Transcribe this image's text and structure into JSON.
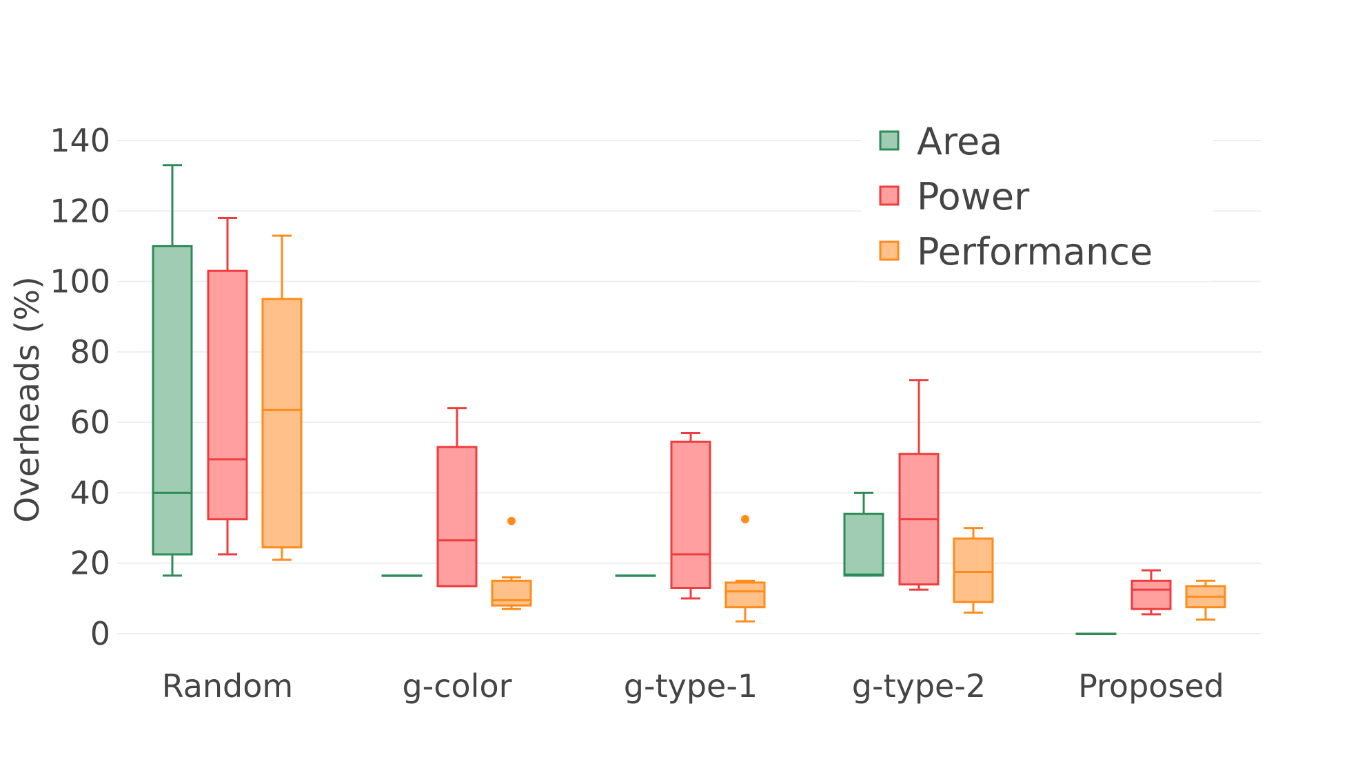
{
  "chart_data": {
    "type": "box",
    "title": "",
    "xlabel": "",
    "ylabel": "Overheads (%)",
    "ylim": [
      -5,
      145
    ],
    "yticks": [
      0,
      20,
      40,
      60,
      80,
      100,
      120,
      140
    ],
    "ytick_labels": [
      "0",
      "20",
      "40",
      "60",
      "80",
      "100",
      "120",
      "140"
    ],
    "grid": true,
    "legend_position": "top-right",
    "categories": [
      "Random",
      "g-color",
      "g-type-1",
      "g-type-2",
      "Proposed"
    ],
    "series": [
      {
        "name": "Area",
        "color": "#2e8b57",
        "fill": "#9fccb3",
        "boxes": [
          {
            "min": 16.5,
            "q1": 22.5,
            "median": 40,
            "q3": 110,
            "max": 133,
            "outliers": []
          },
          {
            "min": 16.5,
            "q1": 16.5,
            "median": 16.5,
            "q3": 16.5,
            "max": 16.5,
            "outliers": []
          },
          {
            "min": 16.5,
            "q1": 16.5,
            "median": 16.5,
            "q3": 16.5,
            "max": 16.5,
            "outliers": []
          },
          {
            "min": 16.5,
            "q1": 16.5,
            "median": 16.8,
            "q3": 34,
            "max": 40,
            "outliers": []
          },
          {
            "min": 0,
            "q1": 0,
            "median": 0,
            "q3": 0,
            "max": 0,
            "outliers": []
          }
        ]
      },
      {
        "name": "Power",
        "color": "#f03c3c",
        "fill": "#ff9f9f",
        "boxes": [
          {
            "min": 22.5,
            "q1": 32.5,
            "median": 49.5,
            "q3": 103,
            "max": 118,
            "outliers": []
          },
          {
            "min": 13.5,
            "q1": 13.5,
            "median": 26.5,
            "q3": 53,
            "max": 64,
            "outliers": []
          },
          {
            "min": 10,
            "q1": 13,
            "median": 22.5,
            "q3": 54.5,
            "max": 57,
            "outliers": []
          },
          {
            "min": 12.5,
            "q1": 14,
            "median": 32.5,
            "q3": 51,
            "max": 72,
            "outliers": []
          },
          {
            "min": 5.5,
            "q1": 7,
            "median": 12.5,
            "q3": 15,
            "max": 18,
            "outliers": []
          }
        ]
      },
      {
        "name": "Performance",
        "color": "#ff8c1a",
        "fill": "#ffc08a",
        "boxes": [
          {
            "min": 21,
            "q1": 24.5,
            "median": 63.5,
            "q3": 95,
            "max": 113,
            "outliers": []
          },
          {
            "min": 7,
            "q1": 8,
            "median": 9.5,
            "q3": 15,
            "max": 16,
            "outliers": [
              32
            ]
          },
          {
            "min": 3.5,
            "q1": 7.5,
            "median": 12,
            "q3": 14.5,
            "max": 15,
            "outliers": [
              32.5
            ]
          },
          {
            "min": 6,
            "q1": 9,
            "median": 17.5,
            "q3": 27,
            "max": 30,
            "outliers": []
          },
          {
            "min": 4,
            "q1": 7.5,
            "median": 10.5,
            "q3": 13.5,
            "max": 15,
            "outliers": []
          }
        ]
      }
    ]
  }
}
